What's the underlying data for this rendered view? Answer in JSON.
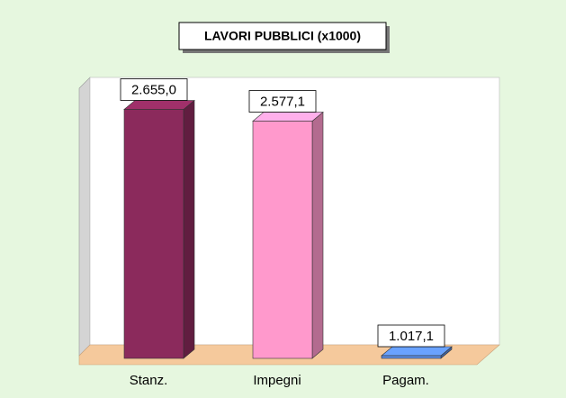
{
  "chart_data": {
    "type": "bar3d",
    "title": "LAVORI PUBBLICI (x1000)",
    "categories": [
      "Stanz.",
      "Impegni",
      "Pagam."
    ],
    "values": [
      2655.0,
      2577.1,
      1017.1
    ],
    "value_labels": [
      "2.655,0",
      "2.577,1",
      "1.017,1"
    ],
    "colors": [
      "#8b2a5c",
      "#ff99cc",
      "#5b8de6"
    ],
    "ylim": [
      1000,
      2700
    ]
  }
}
